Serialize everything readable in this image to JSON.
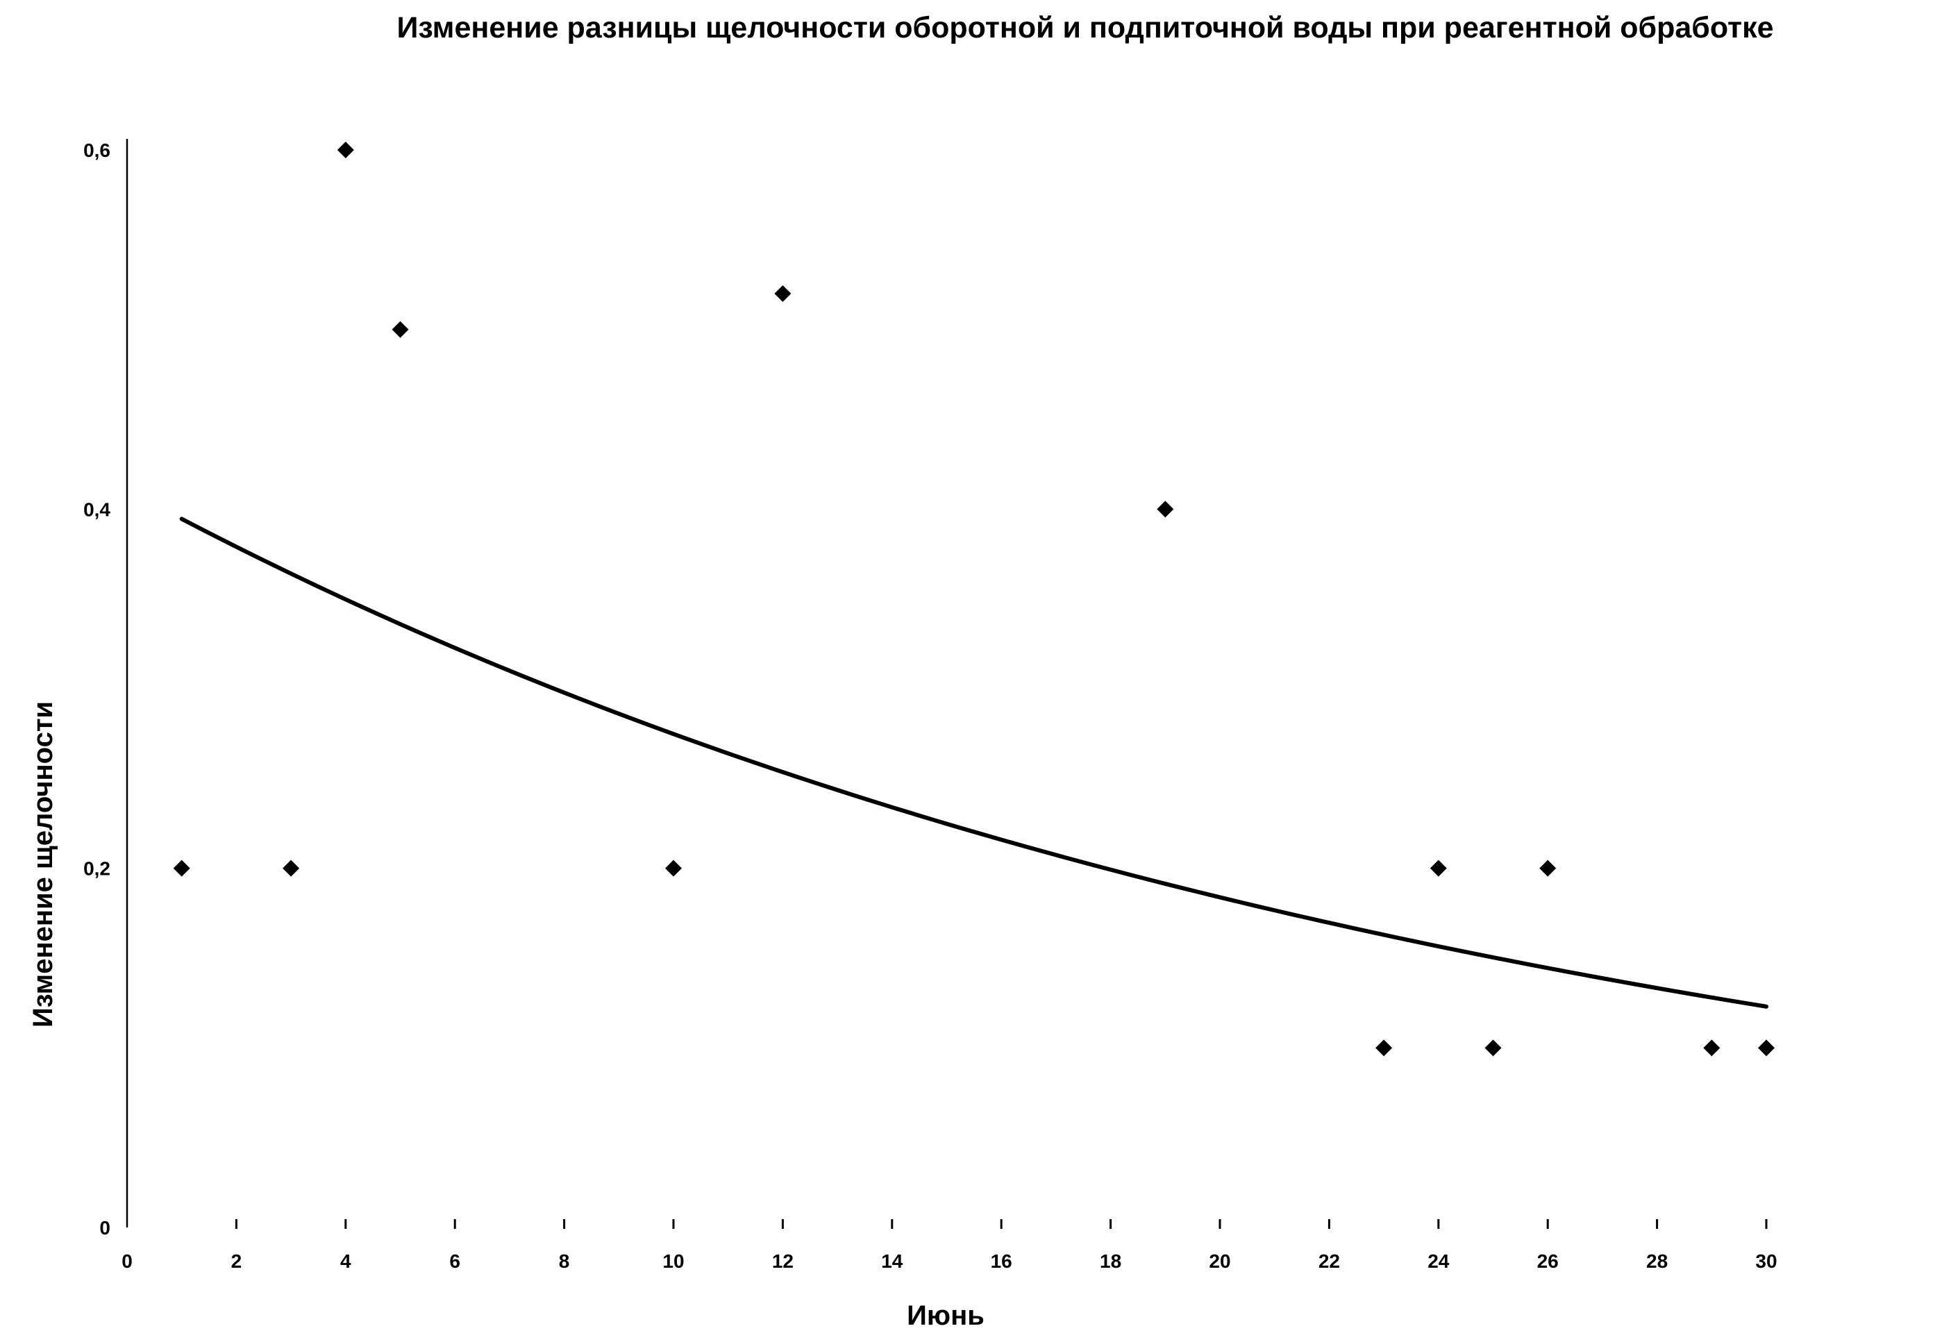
{
  "chart_data": {
    "type": "scatter",
    "title": "Изменение разницы щелочности оборотной и подпиточной воды при реагентной обработке",
    "xlabel": "Июнь",
    "ylabel": "Изменение щелочности",
    "xlim": [
      0,
      30
    ],
    "ylim": [
      0,
      0.6
    ],
    "x_ticks": [
      0,
      2,
      4,
      6,
      8,
      10,
      12,
      14,
      16,
      18,
      20,
      22,
      24,
      26,
      28,
      30
    ],
    "x_tick_labels": [
      "0",
      "2",
      "4",
      "6",
      "8",
      "10",
      "12",
      "14",
      "16",
      "18",
      "20",
      "22",
      "24",
      "26",
      "28",
      "30"
    ],
    "y_ticks": [
      0,
      0.2,
      0.4,
      0.6
    ],
    "y_tick_labels": [
      "0",
      "0,2",
      "0,4",
      "0,6"
    ],
    "grid": false,
    "legend": "none",
    "marker": "diamond",
    "color": "#000000",
    "series": [
      {
        "points": [
          {
            "x": 1,
            "y": 0.2
          },
          {
            "x": 3,
            "y": 0.2
          },
          {
            "x": 4,
            "y": 0.6
          },
          {
            "x": 5,
            "y": 0.5
          },
          {
            "x": 10,
            "y": 0.2
          },
          {
            "x": 12,
            "y": 0.52
          },
          {
            "x": 19,
            "y": 0.4
          },
          {
            "x": 23,
            "y": 0.1
          },
          {
            "x": 24,
            "y": 0.2
          },
          {
            "x": 25,
            "y": 0.1
          },
          {
            "x": 26,
            "y": 0.2
          },
          {
            "x": 29,
            "y": 0.1
          },
          {
            "x": 30,
            "y": 0.1
          }
        ]
      }
    ],
    "trendline": {
      "type": "exponential",
      "points": [
        {
          "x": 1,
          "y": 0.393
        },
        {
          "x": 5,
          "y": 0.336
        },
        {
          "x": 10,
          "y": 0.275
        },
        {
          "x": 15,
          "y": 0.225
        },
        {
          "x": 20,
          "y": 0.185
        },
        {
          "x": 25,
          "y": 0.151
        },
        {
          "x": 30,
          "y": 0.122
        }
      ]
    }
  }
}
